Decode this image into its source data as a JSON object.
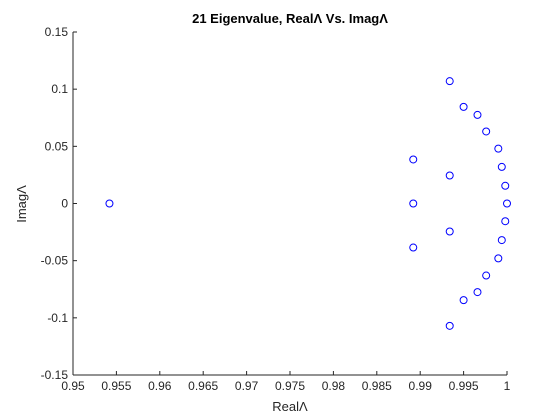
{
  "chart_data": {
    "type": "scatter",
    "title": "21 Eigenvalue, RealΛ Vs. ImagΛ",
    "xlabel": "RealΛ",
    "ylabel": "ImagΛ",
    "xlim": [
      0.95,
      1.0
    ],
    "ylim": [
      -0.15,
      0.15
    ],
    "xticks": [
      0.95,
      0.955,
      0.96,
      0.965,
      0.97,
      0.975,
      0.98,
      0.985,
      0.99,
      0.995,
      1.0
    ],
    "xtick_labels": [
      "0.95",
      "0.955",
      "0.96",
      "0.965",
      "0.97",
      "0.975",
      "0.98",
      "0.985",
      "0.99",
      "0.995",
      "1"
    ],
    "yticks": [
      -0.15,
      -0.1,
      -0.05,
      0,
      0.05,
      0.1,
      0.15
    ],
    "ytick_labels": [
      "-0.15",
      "-0.1",
      "-0.05",
      "0",
      "0.05",
      "0.1",
      "0.15"
    ],
    "grid": false,
    "marker": "circle",
    "marker_color": "#0000ff",
    "series": [
      {
        "points": [
          {
            "x": 0.9542,
            "y": 0.0
          },
          {
            "x": 0.9892,
            "y": 0.0
          },
          {
            "x": 0.9892,
            "y": 0.0385
          },
          {
            "x": 0.9892,
            "y": -0.0385
          },
          {
            "x": 0.9934,
            "y": 0.0245
          },
          {
            "x": 0.9934,
            "y": -0.0245
          },
          {
            "x": 0.9934,
            "y": 0.107
          },
          {
            "x": 0.9934,
            "y": -0.107
          },
          {
            "x": 0.995,
            "y": 0.0845
          },
          {
            "x": 0.995,
            "y": -0.0845
          },
          {
            "x": 0.9966,
            "y": 0.0775
          },
          {
            "x": 0.9966,
            "y": -0.0775
          },
          {
            "x": 0.9976,
            "y": 0.063
          },
          {
            "x": 0.9976,
            "y": -0.063
          },
          {
            "x": 0.999,
            "y": 0.048
          },
          {
            "x": 0.999,
            "y": -0.048
          },
          {
            "x": 0.9994,
            "y": 0.032
          },
          {
            "x": 0.9994,
            "y": -0.032
          },
          {
            "x": 0.9998,
            "y": 0.0155
          },
          {
            "x": 0.9998,
            "y": -0.0155
          },
          {
            "x": 1.0,
            "y": 0.0
          }
        ]
      }
    ]
  }
}
